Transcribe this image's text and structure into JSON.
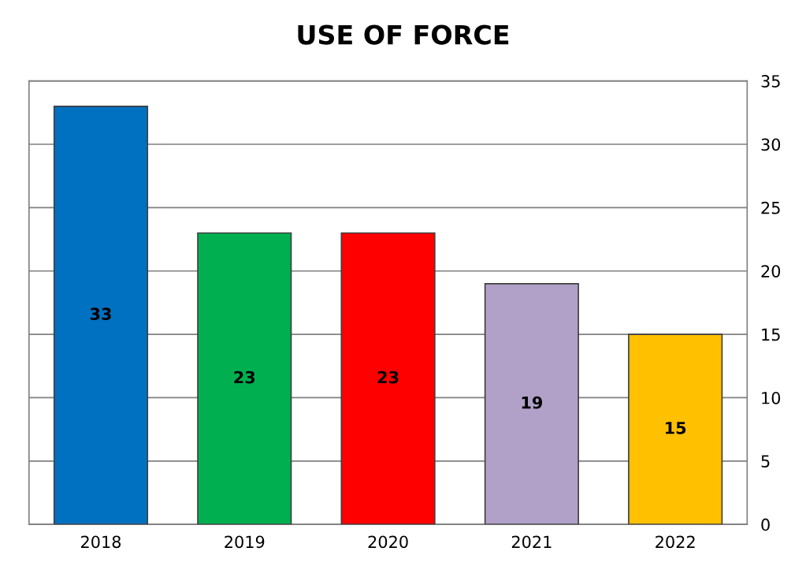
{
  "chart_data": {
    "type": "bar",
    "title": "USE OF FORCE",
    "categories": [
      "2018",
      "2019",
      "2020",
      "2021",
      "2022"
    ],
    "values": [
      33,
      23,
      23,
      19,
      15
    ],
    "colors": [
      "#0070c0",
      "#00b050",
      "#ff0000",
      "#b1a0c7",
      "#ffc000"
    ],
    "ylim": [
      0,
      35
    ],
    "yticks": [
      0,
      5,
      10,
      15,
      20,
      25,
      30,
      35
    ],
    "grid": "y",
    "data_labels": true
  }
}
